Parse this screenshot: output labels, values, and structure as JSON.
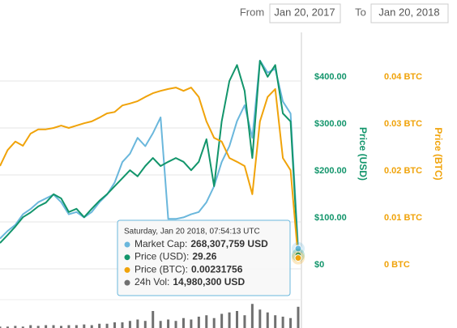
{
  "controls": {
    "from_label": "From",
    "from_value": "Jan 20, 2017",
    "to_label": "To",
    "to_value": "Jan 20, 2018"
  },
  "chart_data": {
    "type": "line",
    "categories": [
      null,
      null,
      null,
      null,
      null,
      null,
      null,
      null,
      null,
      null,
      null,
      null,
      null,
      null,
      null,
      null,
      null,
      null,
      null,
      null,
      null,
      null,
      null,
      null,
      null,
      null,
      null,
      null,
      null,
      null,
      null,
      null,
      null,
      null,
      null,
      null,
      null,
      null,
      null,
      null
    ],
    "ylabel": "Price (USD)",
    "y2label": "Price (BTC)",
    "ylim": [
      0,
      500
    ],
    "yticks": [
      {
        "value": 0,
        "label": "$0"
      },
      {
        "value": 100,
        "label": "$100.00"
      },
      {
        "value": 200,
        "label": "$200.00"
      },
      {
        "value": 300,
        "label": "$300.00"
      },
      {
        "value": 400,
        "label": "$400.00"
      }
    ],
    "y2lim": [
      0,
      0.05
    ],
    "y2ticks": [
      {
        "value": 0,
        "label": "0 BTC"
      },
      {
        "value": 0.01,
        "label": "0.01 BTC"
      },
      {
        "value": 0.02,
        "label": "0.02 BTC"
      },
      {
        "value": 0.03,
        "label": "0.03 BTC"
      },
      {
        "value": 0.04,
        "label": "0.04 BTC"
      }
    ],
    "y3lim": [
      0,
      3100000000
    ],
    "y4lim": [
      0,
      20000000
    ],
    "grid": true,
    "series": [
      {
        "color": "#6ab7dc",
        "axis": "y3",
        "values": [
          400000000,
          500000000,
          580000000,
          720000000,
          790000000,
          880000000,
          930000000,
          980000000,
          880000000,
          720000000,
          750000000,
          680000000,
          750000000,
          880000000,
          980000000,
          1140000000,
          1410000000,
          1520000000,
          1730000000,
          1620000000,
          1790000000,
          2000000000,
          660000000,
          660000000,
          680000000,
          720000000,
          750000000,
          880000000,
          1090000000,
          1410000000,
          1620000000,
          1950000000,
          2160000000,
          1730000000,
          2750000000,
          2590000000,
          2640000000,
          2210000000,
          2050000000,
          268307759
        ]
      },
      {
        "color": "#12956b",
        "axis": "y",
        "values": [
          55,
          72,
          90,
          110,
          120,
          133,
          141,
          159,
          150,
          121,
          128,
          110,
          128,
          145,
          159,
          176,
          193,
          210,
          197,
          219,
          236,
          219,
          228,
          236,
          228,
          210,
          228,
          276,
          176,
          314,
          400,
          434,
          379,
          236,
          443,
          409,
          434,
          331,
          314,
          29.26
        ]
      },
      {
        "color": "#f0a30a",
        "axis": "y2",
        "values": [
          0.0219,
          0.0253,
          0.0271,
          0.0262,
          0.0288,
          0.0297,
          0.0297,
          0.03,
          0.0305,
          0.03,
          0.0305,
          0.031,
          0.0314,
          0.0322,
          0.0331,
          0.0334,
          0.0348,
          0.0352,
          0.0357,
          0.0366,
          0.0374,
          0.0379,
          0.0383,
          0.0386,
          0.0379,
          0.0386,
          0.0366,
          0.0314,
          0.0279,
          0.0271,
          0.0236,
          0.0228,
          0.0219,
          0.0159,
          0.0314,
          0.0366,
          0.0383,
          0.0236,
          0.021,
          0.00231756
        ]
      },
      {
        "color": "#707070",
        "axis": "y4",
        "values": [
          1000000,
          1000000,
          1500000,
          1000000,
          2000000,
          1500000,
          2000000,
          2000000,
          1500000,
          2000000,
          2000000,
          2500000,
          2000000,
          3000000,
          3000000,
          4000000,
          4000000,
          5000000,
          6000000,
          5000000,
          12000000,
          5000000,
          6000000,
          5000000,
          7000000,
          6000000,
          8000000,
          9000000,
          7000000,
          10000000,
          11000000,
          12000000,
          9000000,
          17000000,
          13000000,
          11000000,
          9000000,
          8000000,
          7000000,
          14980300
        ]
      }
    ],
    "tooltip": {
      "date": "Saturday, Jan 20 2018, 07:54:13 UTC",
      "items": [
        {
          "label": "Market Cap:",
          "value": "268,307,759 USD"
        },
        {
          "label": "Price (USD):",
          "value": "29.26"
        },
        {
          "label": "Price (BTC):",
          "value": "0.00231756"
        },
        {
          "label": "24h Vol:",
          "value": "14,980,300 USD"
        }
      ]
    }
  }
}
